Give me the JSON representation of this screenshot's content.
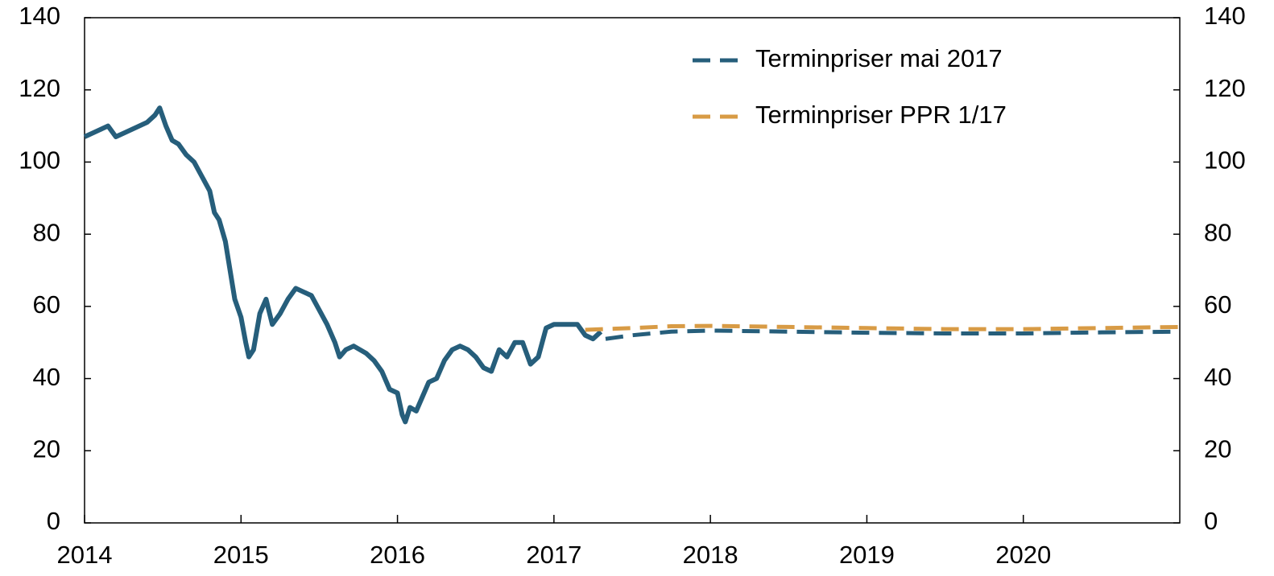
{
  "chart_data": {
    "type": "line",
    "xlim": [
      2014,
      2021
    ],
    "xticks": [
      2014,
      2015,
      2016,
      2017,
      2018,
      2019,
      2020
    ],
    "ylim": [
      0,
      140
    ],
    "yticks": [
      0,
      20,
      40,
      60,
      80,
      100,
      120,
      140
    ],
    "legend": "top-right",
    "series": [
      {
        "color": "#265e7b",
        "style": "solid",
        "x": [
          2014.0,
          2014.05,
          2014.1,
          2014.15,
          2014.2,
          2014.25,
          2014.3,
          2014.35,
          2014.4,
          2014.45,
          2014.48,
          2014.52,
          2014.56,
          2014.6,
          2014.65,
          2014.7,
          2014.75,
          2014.8,
          2014.83,
          2014.86,
          2014.9,
          2014.93,
          2014.96,
          2015.0,
          2015.03,
          2015.05,
          2015.08,
          2015.12,
          2015.16,
          2015.2,
          2015.25,
          2015.3,
          2015.35,
          2015.4,
          2015.45,
          2015.5,
          2015.55,
          2015.6,
          2015.63,
          2015.67,
          2015.72,
          2015.76,
          2015.8,
          2015.85,
          2015.9,
          2015.95,
          2016.0,
          2016.03,
          2016.05,
          2016.08,
          2016.12,
          2016.16,
          2016.2,
          2016.25,
          2016.3,
          2016.35,
          2016.4,
          2016.45,
          2016.5,
          2016.55,
          2016.6,
          2016.65,
          2016.7,
          2016.75,
          2016.8,
          2016.85,
          2016.9,
          2016.95,
          2017.0,
          2017.05,
          2017.1,
          2017.15,
          2017.2,
          2017.25,
          2017.3
        ],
        "values": [
          107,
          108,
          109,
          110,
          107,
          108,
          109,
          110,
          111,
          113,
          115,
          110,
          106,
          105,
          102,
          100,
          96,
          92,
          86,
          84,
          78,
          70,
          62,
          57,
          50,
          46,
          48,
          58,
          62,
          55,
          58,
          62,
          65,
          64,
          63,
          59,
          55,
          50,
          46,
          48,
          49,
          48,
          47,
          45,
          42,
          37,
          36,
          30,
          28,
          32,
          31,
          35,
          39,
          40,
          45,
          48,
          49,
          48,
          46,
          43,
          42,
          48,
          46,
          50,
          50,
          44,
          46,
          54,
          55,
          55,
          55,
          55,
          52,
          51,
          53
        ]
      },
      {
        "name": "Terminpriser mai 2017",
        "color": "#265e7b",
        "style": "dashed",
        "x": [
          2017.33,
          2017.5,
          2017.75,
          2018.0,
          2018.5,
          2019.0,
          2019.5,
          2020.0,
          2020.5,
          2021.0
        ],
        "values": [
          51,
          52,
          53,
          53.3,
          53,
          52.7,
          52.5,
          52.5,
          52.8,
          53
        ]
      },
      {
        "name": "Terminpriser PPR 1/17",
        "color": "#d89b45",
        "style": "dashed",
        "x": [
          2017.2,
          2017.5,
          2017.75,
          2018.0,
          2018.5,
          2019.0,
          2019.5,
          2020.0,
          2020.5,
          2021.0
        ],
        "values": [
          53.5,
          54,
          54.5,
          54.6,
          54.3,
          54,
          53.7,
          53.7,
          54,
          54.3
        ]
      }
    ]
  }
}
